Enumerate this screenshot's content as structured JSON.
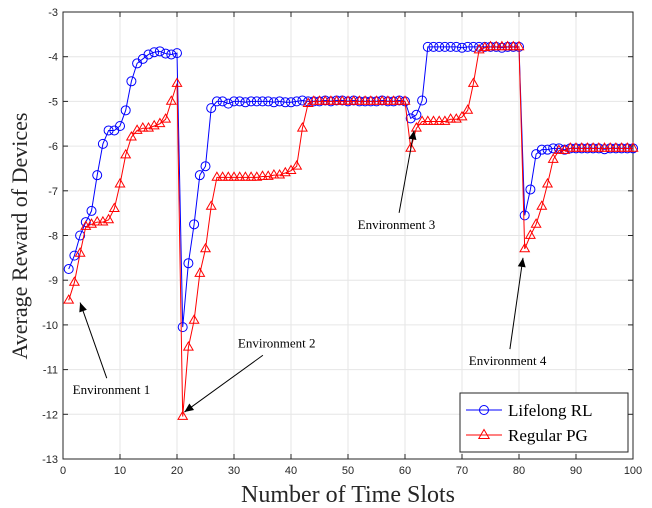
{
  "chart_data": {
    "type": "line",
    "xlabel": "Number of Time Slots",
    "ylabel": "Average Reward of Devices",
    "xlim": [
      0,
      100
    ],
    "ylim": [
      -13,
      -3
    ],
    "xticks": [
      0,
      10,
      20,
      30,
      40,
      50,
      60,
      70,
      80,
      90,
      100
    ],
    "yticks": [
      -13,
      -12,
      -11,
      -10,
      -9,
      -8,
      -7,
      -6,
      -5,
      -4,
      -3
    ],
    "grid": true,
    "legend_position": "bottom-right",
    "series": [
      {
        "name": "Lifelong RL",
        "color": "#0000ff",
        "marker": "circle",
        "x": [
          1,
          2,
          3,
          4,
          5,
          6,
          7,
          8,
          9,
          10,
          11,
          12,
          13,
          14,
          15,
          16,
          17,
          18,
          19,
          20,
          21,
          22,
          23,
          24,
          25,
          26,
          27,
          28,
          29,
          30,
          31,
          32,
          33,
          34,
          35,
          36,
          37,
          38,
          39,
          40,
          41,
          42,
          43,
          44,
          45,
          46,
          47,
          48,
          49,
          50,
          51,
          52,
          53,
          54,
          55,
          56,
          57,
          58,
          59,
          60,
          61,
          62,
          63,
          64,
          65,
          66,
          67,
          68,
          69,
          70,
          71,
          72,
          73,
          74,
          75,
          76,
          77,
          78,
          79,
          80,
          81,
          82,
          83,
          84,
          85,
          86,
          87,
          88,
          89,
          90,
          91,
          92,
          93,
          94,
          95,
          96,
          97,
          98,
          99,
          100
        ],
        "y": [
          -8.75,
          -8.45,
          -8.0,
          -7.7,
          -7.45,
          -6.65,
          -5.95,
          -5.65,
          -5.65,
          -5.55,
          -5.2,
          -4.55,
          -4.15,
          -4.05,
          -3.95,
          -3.9,
          -3.88,
          -3.93,
          -3.95,
          -3.92,
          -10.05,
          -8.62,
          -7.75,
          -6.65,
          -6.45,
          -5.15,
          -5.0,
          -5.0,
          -5.05,
          -5.0,
          -5.0,
          -5.02,
          -5.0,
          -5.0,
          -5.0,
          -5.0,
          -5.02,
          -5.0,
          -5.02,
          -5.02,
          -5.0,
          -4.98,
          -5.0,
          -5.0,
          -5.0,
          -4.98,
          -5.0,
          -4.98,
          -4.98,
          -5.0,
          -4.98,
          -5.0,
          -5.0,
          -5.0,
          -5.0,
          -4.98,
          -5.0,
          -5.0,
          -4.98,
          -5.0,
          -5.38,
          -5.3,
          -4.98,
          -3.78,
          -3.78,
          -3.78,
          -3.78,
          -3.78,
          -3.78,
          -3.8,
          -3.78,
          -3.78,
          -3.78,
          -3.78,
          -3.78,
          -3.78,
          -3.8,
          -3.78,
          -3.78,
          -3.78,
          -7.55,
          -6.97,
          -6.18,
          -6.08,
          -6.08,
          -6.05,
          -6.05,
          -6.08,
          -6.05,
          -6.05,
          -6.05,
          -6.05,
          -6.05,
          -6.05,
          -6.07,
          -6.05,
          -6.05,
          -6.05,
          -6.05,
          -6.05
        ]
      },
      {
        "name": "Regular PG",
        "color": "#ff0000",
        "marker": "triangle",
        "x": [
          1,
          2,
          3,
          4,
          5,
          6,
          7,
          8,
          9,
          10,
          11,
          12,
          13,
          14,
          15,
          16,
          17,
          18,
          19,
          20,
          21,
          22,
          23,
          24,
          25,
          26,
          27,
          28,
          29,
          30,
          31,
          32,
          33,
          34,
          35,
          36,
          37,
          38,
          39,
          40,
          41,
          42,
          43,
          44,
          45,
          46,
          47,
          48,
          49,
          50,
          51,
          52,
          53,
          54,
          55,
          56,
          57,
          58,
          59,
          60,
          61,
          62,
          63,
          64,
          65,
          66,
          67,
          68,
          69,
          70,
          71,
          72,
          73,
          74,
          75,
          76,
          77,
          78,
          79,
          80,
          81,
          82,
          83,
          84,
          85,
          86,
          87,
          88,
          89,
          90,
          91,
          92,
          93,
          94,
          95,
          96,
          97,
          98,
          99,
          100
        ],
        "y": [
          -9.45,
          -9.05,
          -8.4,
          -7.8,
          -7.75,
          -7.7,
          -7.7,
          -7.65,
          -7.4,
          -6.85,
          -6.2,
          -5.8,
          -5.65,
          -5.6,
          -5.6,
          -5.55,
          -5.5,
          -5.4,
          -5.0,
          -4.6,
          -12.05,
          -10.5,
          -9.9,
          -8.85,
          -8.3,
          -7.35,
          -6.7,
          -6.7,
          -6.7,
          -6.7,
          -6.7,
          -6.7,
          -6.7,
          -6.7,
          -6.68,
          -6.68,
          -6.65,
          -6.65,
          -6.6,
          -6.55,
          -6.45,
          -5.6,
          -5.05,
          -5.0,
          -5.0,
          -5.0,
          -5.0,
          -5.0,
          -5.0,
          -5.0,
          -5.0,
          -5.0,
          -5.0,
          -5.0,
          -5.0,
          -5.0,
          -5.0,
          -5.0,
          -5.0,
          -5.0,
          -6.05,
          -5.6,
          -5.45,
          -5.45,
          -5.45,
          -5.45,
          -5.45,
          -5.4,
          -5.4,
          -5.35,
          -5.2,
          -4.6,
          -3.85,
          -3.8,
          -3.78,
          -3.78,
          -3.78,
          -3.78,
          -3.78,
          -3.78,
          -8.3,
          -8.0,
          -7.75,
          -7.35,
          -6.85,
          -6.3,
          -6.1,
          -6.1,
          -6.05,
          -6.05,
          -6.05,
          -6.05,
          -6.05,
          -6.05,
          -6.05,
          -6.05,
          -6.05,
          -6.05,
          -6.05,
          -6.05
        ]
      }
    ],
    "annotations": [
      {
        "text": "Environment 1",
        "text_x": 8.5,
        "text_y": -11.55,
        "point_x": 3.0,
        "point_y": -9.5
      },
      {
        "text": "Environment 2",
        "text_x": 37.5,
        "text_y": -10.5,
        "point_x": 21.3,
        "point_y": -11.95
      },
      {
        "text": "Environment 3",
        "text_x": 58.5,
        "text_y": -7.85,
        "point_x": 61.6,
        "point_y": -5.65
      },
      {
        "text": "Environment 4",
        "text_x": 78.0,
        "text_y": -10.9,
        "point_x": 80.7,
        "point_y": -8.5
      }
    ]
  }
}
